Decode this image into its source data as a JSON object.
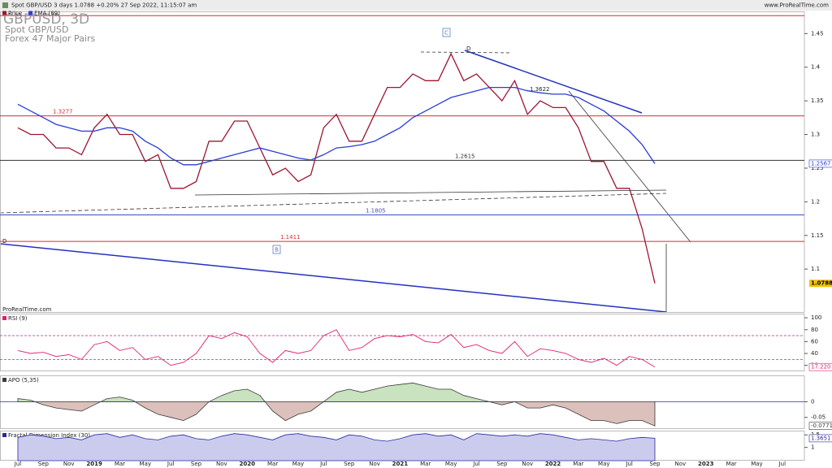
{
  "header": {
    "text": "Spot GBP/USD 3 days 1.0788 +0.20% 27 Sep 2022, 11:15:07 am",
    "site": "www.ProRealTime.com",
    "watermark": "ProRealTime.com"
  },
  "annotations": [
    "D",
    "C",
    "B",
    "1.3622",
    "D"
  ],
  "chart_data": [
    {
      "type": "line",
      "title": "GBPUSD, 3D",
      "subtitle": [
        "Spot GBP/USD",
        "Forex 47 Major Pairs"
      ],
      "categories": [
        "Jul",
        null,
        "Sep",
        null,
        "Nov",
        null,
        "2019",
        null,
        "Mar",
        null,
        "May",
        null,
        "Jul",
        null,
        "Sep",
        null,
        "Nov",
        null,
        "2020",
        null,
        "Mar",
        null,
        "May",
        null,
        "Jul",
        null,
        "Sep",
        null,
        "Nov",
        null,
        "2021",
        null,
        "Mar",
        null,
        "May",
        null,
        "Jul",
        null,
        "Sep",
        null,
        "Nov",
        null,
        "2022",
        null,
        "Mar",
        null,
        "May",
        null,
        "Jul",
        null,
        "Sep",
        null,
        "Nov",
        null,
        "2023",
        null,
        "Mar",
        null,
        "May",
        null,
        "Jul"
      ],
      "series": [
        {
          "name": "Price",
          "color": "#9c1630",
          "values": [
            1.31,
            1.3,
            1.3,
            1.28,
            1.28,
            1.27,
            1.31,
            1.33,
            1.3,
            1.3,
            1.26,
            1.27,
            1.22,
            1.22,
            1.23,
            1.29,
            1.29,
            1.32,
            1.32,
            1.28,
            1.24,
            1.25,
            1.23,
            1.24,
            1.31,
            1.33,
            1.29,
            1.29,
            1.33,
            1.37,
            1.37,
            1.39,
            1.38,
            1.38,
            1.42,
            1.38,
            1.39,
            1.37,
            1.35,
            1.38,
            1.33,
            1.35,
            1.34,
            1.34,
            1.31,
            1.26,
            1.26,
            1.22,
            1.22,
            1.16,
            1.0788,
            null,
            null,
            null,
            null,
            null,
            null,
            null,
            null,
            null,
            null
          ]
        },
        {
          "name": "EMA (89)",
          "color": "#2a3cd6",
          "values": [
            1.345,
            1.335,
            1.325,
            1.315,
            1.31,
            1.305,
            1.305,
            1.31,
            1.31,
            1.305,
            1.29,
            1.28,
            1.265,
            1.255,
            1.255,
            1.26,
            1.265,
            1.27,
            1.275,
            1.28,
            1.275,
            1.27,
            1.265,
            1.262,
            1.27,
            1.28,
            1.282,
            1.285,
            1.29,
            1.3,
            1.31,
            1.325,
            1.335,
            1.345,
            1.355,
            1.36,
            1.365,
            1.37,
            1.37,
            1.37,
            1.365,
            1.362,
            1.36,
            1.36,
            1.355,
            1.345,
            1.335,
            1.32,
            1.305,
            1.285,
            1.2567,
            null,
            null,
            null,
            null,
            null,
            null,
            null,
            null,
            null,
            null
          ]
        }
      ],
      "ylim": [
        1.035,
        1.483
      ],
      "yticks": [
        1.1,
        1.15,
        1.2,
        1.25,
        1.3,
        1.35,
        1.4,
        1.45
      ],
      "levels": [
        {
          "value": 1.4766,
          "color": "#d03030"
        },
        {
          "value": 1.3277,
          "color": "#d03030"
        },
        {
          "value": 1.2615,
          "color": "#333333"
        },
        {
          "value": 1.1805,
          "color": "#3a4fc0"
        },
        {
          "value": 1.1411,
          "color": "#d03030"
        }
      ]
    },
    {
      "type": "line",
      "title": "RSI (9)",
      "series": [
        {
          "name": "RSI",
          "color": "#e0206a",
          "values": [
            45,
            40,
            42,
            35,
            38,
            30,
            55,
            60,
            45,
            50,
            30,
            35,
            20,
            25,
            40,
            70,
            65,
            75,
            68,
            40,
            25,
            45,
            40,
            45,
            70,
            80,
            45,
            50,
            65,
            70,
            68,
            72,
            60,
            58,
            72,
            50,
            55,
            45,
            40,
            60,
            35,
            48,
            45,
            40,
            30,
            25,
            32,
            20,
            35,
            30,
            17.22
          ],
          "value_labels": [
            null,
            null,
            null,
            null,
            null,
            null,
            null,
            null,
            null,
            null,
            null,
            null,
            null,
            null,
            null,
            null,
            null,
            null,
            null,
            null,
            null,
            null,
            null,
            null,
            null,
            null,
            null,
            null,
            null,
            null,
            null,
            null,
            null,
            null,
            null,
            null,
            null,
            null,
            null,
            null,
            null,
            null,
            null,
            null,
            null,
            null,
            null,
            null,
            null,
            null,
            "17.220"
          ]
        }
      ],
      "ylim": [
        10,
        107
      ],
      "yticks": [
        20,
        40,
        60,
        80,
        100
      ],
      "levels": [
        {
          "value": 70,
          "color": "#c040a0"
        },
        {
          "value": 30,
          "color": "#6a4bd0"
        }
      ]
    },
    {
      "type": "area",
      "title": "APO (5,35)",
      "series": [
        {
          "name": "APO",
          "color": "#3a3a3a",
          "fill": "#c9e2bf",
          "negative_fill": "#dcc0bc",
          "values": [
            0.01,
            0.005,
            -0.01,
            -0.02,
            -0.025,
            -0.03,
            -0.01,
            0.01,
            0.015,
            0.005,
            -0.02,
            -0.04,
            -0.05,
            -0.06,
            -0.04,
            0.0,
            0.02,
            0.035,
            0.04,
            0.02,
            -0.03,
            -0.06,
            -0.04,
            -0.03,
            0.0,
            0.03,
            0.04,
            0.03,
            0.04,
            0.05,
            0.055,
            0.06,
            0.05,
            0.04,
            0.04,
            0.02,
            0.01,
            0.0,
            -0.01,
            0.0,
            -0.02,
            -0.02,
            -0.01,
            -0.02,
            -0.04,
            -0.06,
            -0.06,
            -0.07,
            -0.06,
            -0.06,
            -0.0771
          ]
        }
      ],
      "ylim": [
        -0.087,
        0.084
      ],
      "yticks": [
        -0.05,
        0
      ],
      "levels": [
        {
          "value": 0,
          "color": "#3a4fc0"
        }
      ]
    },
    {
      "type": "area",
      "title": "Fractal Dimension Index (30)",
      "series": [
        {
          "name": "FDI",
          "color": "#2a2aa0",
          "fill": "#cbcbee",
          "values": [
            1.4,
            1.5,
            1.45,
            1.35,
            1.4,
            1.3,
            1.5,
            1.55,
            1.4,
            1.5,
            1.35,
            1.3,
            1.45,
            1.5,
            1.35,
            1.3,
            1.45,
            1.55,
            1.5,
            1.4,
            1.3,
            1.5,
            1.55,
            1.45,
            1.4,
            1.3,
            1.5,
            1.45,
            1.3,
            1.25,
            1.35,
            1.5,
            1.55,
            1.45,
            1.5,
            1.3,
            1.55,
            1.5,
            1.45,
            1.5,
            1.45,
            1.55,
            1.5,
            1.4,
            1.3,
            1.35,
            1.3,
            1.25,
            1.35,
            1.4,
            1.3651
          ]
        }
      ],
      "ylim": [
        0.47,
        1.67
      ],
      "yticks": [
        1,
        1.5
      ]
    }
  ]
}
